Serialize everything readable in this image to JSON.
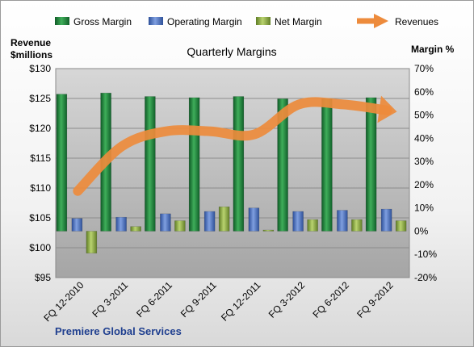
{
  "chart_data": {
    "type": "bar",
    "title": "Quarterly Margins",
    "categories": [
      "FQ 12-2010",
      "FQ 3-2011",
      "FQ 6-2011",
      "FQ 9-2011",
      "FQ 12-2011",
      "FQ 3-2012",
      "FQ 6-2012",
      "FQ 9-2012"
    ],
    "series": [
      {
        "name": "Gross Margin",
        "axis": "right",
        "kind": "bar",
        "color": "#1f7a3a",
        "values": [
          59.0,
          59.5,
          58.0,
          57.5,
          58.0,
          57.0,
          57.0,
          57.5
        ]
      },
      {
        "name": "Operating Margin",
        "axis": "right",
        "kind": "bar",
        "color": "#4a6fbf",
        "values": [
          5.5,
          6.0,
          7.5,
          8.5,
          10.0,
          8.5,
          9.0,
          9.5
        ]
      },
      {
        "name": "Net Margin",
        "axis": "right",
        "kind": "bar",
        "color": "#92b050",
        "values": [
          -9.5,
          2.0,
          4.5,
          10.5,
          0.5,
          5.0,
          5.0,
          4.5
        ]
      },
      {
        "name": "Revenues",
        "axis": "left",
        "kind": "line",
        "color": "#ed8b3c",
        "values": [
          109.5,
          117.0,
          119.5,
          119.5,
          119.0,
          124.0,
          124.0,
          123.0
        ]
      }
    ],
    "left_axis": {
      "label_line1": "Revenue",
      "label_line2": "$millions",
      "min": 95,
      "max": 130,
      "step": 5,
      "ticks": [
        "$95",
        "$100",
        "$105",
        "$110",
        "$115",
        "$120",
        "$125",
        "$130"
      ]
    },
    "right_axis": {
      "label": "Margin %",
      "min": -20,
      "max": 70,
      "step": 10,
      "ticks": [
        "-20%",
        "-10%",
        "0%",
        "10%",
        "20%",
        "30%",
        "40%",
        "50%",
        "60%",
        "70%"
      ]
    },
    "grid": true,
    "legend_position": "top"
  },
  "footer": {
    "company": "Premiere Global Services"
  }
}
